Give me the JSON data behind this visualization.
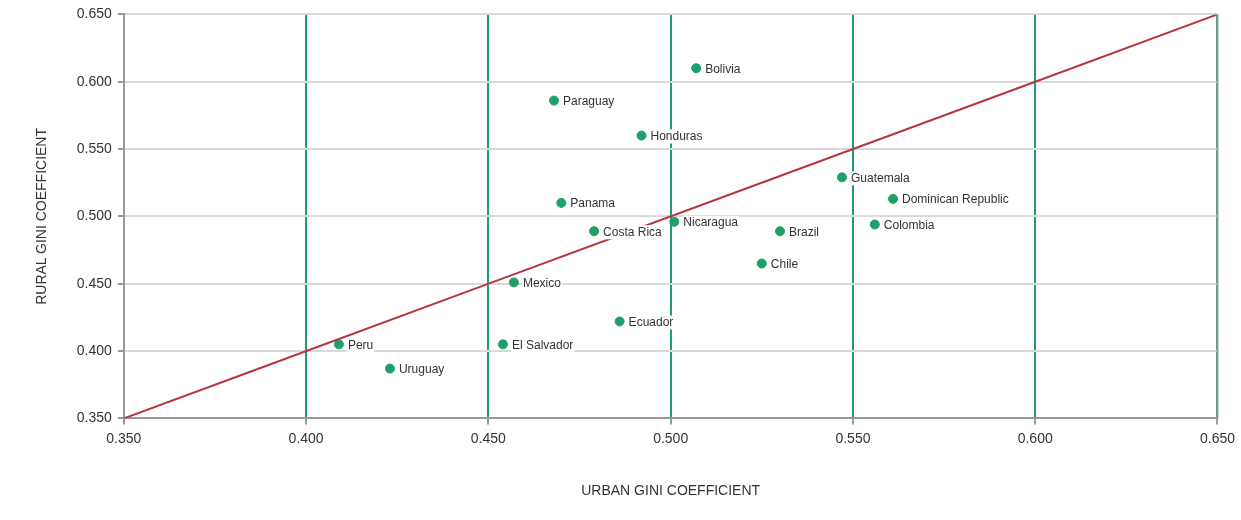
{
  "chart_data": {
    "type": "scatter",
    "xlabel": "URBAN GINI COEFFICIENT",
    "ylabel": "RURAL GINI COEFFICIENT",
    "xlim": [
      0.35,
      0.65
    ],
    "ylim": [
      0.35,
      0.65
    ],
    "xticks": [
      {
        "value": 0.35,
        "label": "0.350"
      },
      {
        "value": 0.4,
        "label": "0.400"
      },
      {
        "value": 0.45,
        "label": "0.450"
      },
      {
        "value": 0.5,
        "label": "0.500"
      },
      {
        "value": 0.55,
        "label": "0.550"
      },
      {
        "value": 0.6,
        "label": "0.600"
      },
      {
        "value": 0.65,
        "label": "0.650"
      }
    ],
    "yticks": [
      {
        "value": 0.35,
        "label": "0.350"
      },
      {
        "value": 0.4,
        "label": "0.400"
      },
      {
        "value": 0.45,
        "label": "0.450"
      },
      {
        "value": 0.5,
        "label": "0.500"
      },
      {
        "value": 0.55,
        "label": "0.550"
      },
      {
        "value": 0.6,
        "label": "0.600"
      },
      {
        "value": 0.65,
        "label": "0.650"
      }
    ],
    "grid": true,
    "legend": false,
    "marker": "circle",
    "series": [
      {
        "color": "#1fa06a",
        "x": [
          0.507,
          0.468,
          0.492,
          0.547,
          0.561,
          0.47,
          0.501,
          0.479,
          0.53,
          0.556,
          0.525,
          0.457,
          0.486,
          0.409,
          0.454,
          0.423
        ],
        "values": [
          0.61,
          0.586,
          0.56,
          0.529,
          0.513,
          0.51,
          0.496,
          0.489,
          0.489,
          0.494,
          0.465,
          0.451,
          0.422,
          0.405,
          0.405,
          0.387
        ]
      },
      {
        "type": "line",
        "color": "#b5373d",
        "x": [
          0.35,
          0.65
        ],
        "values": [
          0.35,
          0.65
        ],
        "marker": "none",
        "line_style": "solid"
      }
    ],
    "annotations": [
      {
        "text": "Bolivia",
        "x": 0.507,
        "y": 0.61
      },
      {
        "text": "Paraguay",
        "x": 0.468,
        "y": 0.586
      },
      {
        "text": "Honduras",
        "x": 0.492,
        "y": 0.56
      },
      {
        "text": "Guatemala",
        "x": 0.547,
        "y": 0.529
      },
      {
        "text": "Dominican Republic",
        "x": 0.561,
        "y": 0.513
      },
      {
        "text": "Panama",
        "x": 0.47,
        "y": 0.51
      },
      {
        "text": "Nicaragua",
        "x": 0.501,
        "y": 0.496
      },
      {
        "text": "Costa Rica",
        "x": 0.479,
        "y": 0.489
      },
      {
        "text": "Brazil",
        "x": 0.53,
        "y": 0.489
      },
      {
        "text": "Colombia",
        "x": 0.556,
        "y": 0.494
      },
      {
        "text": "Chile",
        "x": 0.525,
        "y": 0.465
      },
      {
        "text": "Mexico",
        "x": 0.457,
        "y": 0.451
      },
      {
        "text": "Ecuador",
        "x": 0.486,
        "y": 0.422
      },
      {
        "text": "Peru",
        "x": 0.409,
        "y": 0.405
      },
      {
        "text": "El Salvador",
        "x": 0.454,
        "y": 0.405
      },
      {
        "text": "Uruguay",
        "x": 0.423,
        "y": 0.387
      }
    ]
  }
}
